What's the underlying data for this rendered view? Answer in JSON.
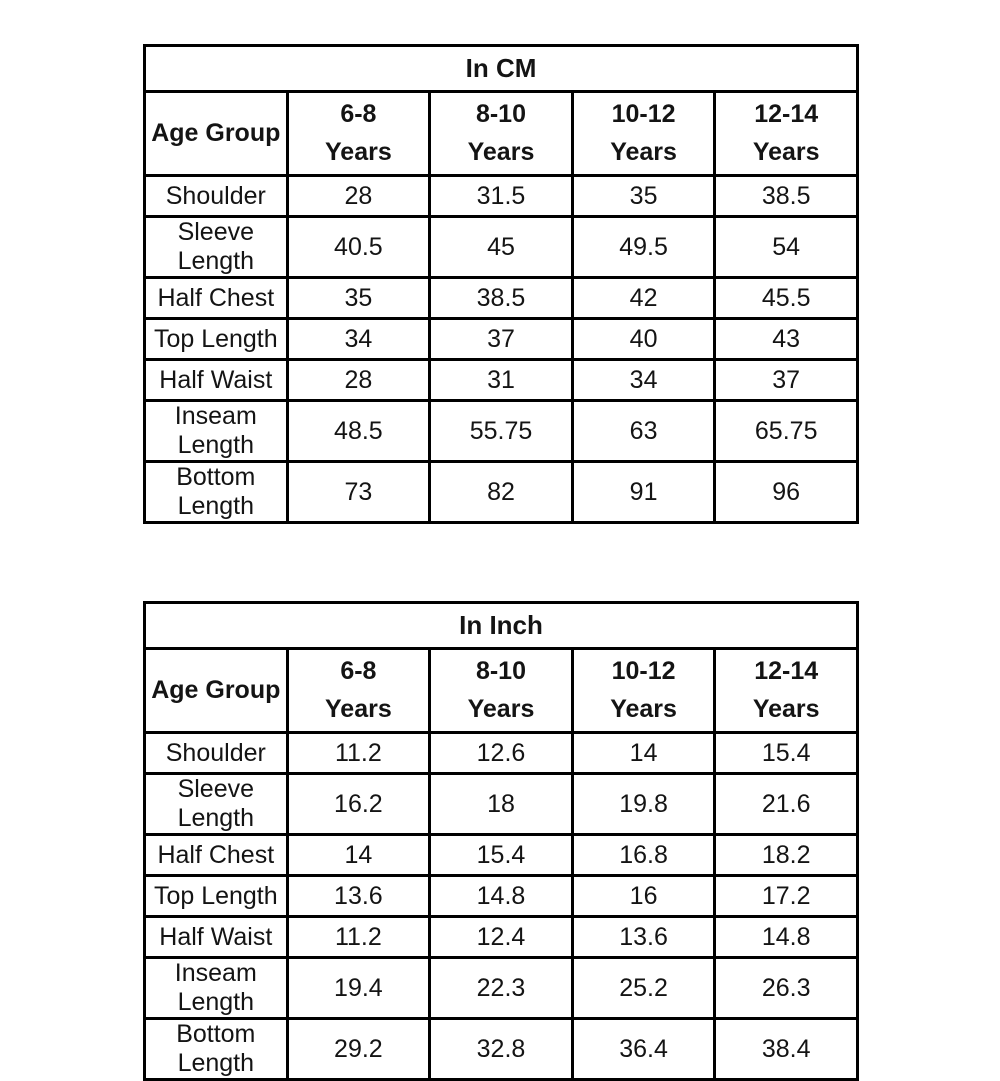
{
  "page": {
    "background": "#ffffff",
    "text_color": "#141414",
    "border_color": "#000000"
  },
  "chart_data": [
    {
      "type": "table",
      "title": "In CM",
      "columns": [
        "Age Group",
        "6-8\nYears",
        "8-10\nYears",
        "10-12\nYears",
        "12-14\nYears"
      ],
      "rows": [
        [
          "Shoulder",
          "28",
          "31.5",
          "35",
          "38.5"
        ],
        [
          "Sleeve Length",
          "40.5",
          "45",
          "49.5",
          "54"
        ],
        [
          "Half Chest",
          "35",
          "38.5",
          "42",
          "45.5"
        ],
        [
          "Top Length",
          "34",
          "37",
          "40",
          "43"
        ],
        [
          "Half Waist",
          "28",
          "31",
          "34",
          "37"
        ],
        [
          "Inseam Length",
          "48.5",
          "55.75",
          "63",
          "65.75"
        ],
        [
          "Bottom Length",
          "73",
          "82",
          "91",
          "96"
        ]
      ]
    },
    {
      "type": "table",
      "title": "In Inch",
      "columns": [
        "Age Group",
        "6-8\nYears",
        "8-10\nYears",
        "10-12\nYears",
        "12-14\nYears"
      ],
      "rows": [
        [
          "Shoulder",
          "11.2",
          "12.6",
          "14",
          "15.4"
        ],
        [
          "Sleeve Length",
          "16.2",
          "18",
          "19.8",
          "21.6"
        ],
        [
          "Half Chest",
          "14",
          "15.4",
          "16.8",
          "18.2"
        ],
        [
          "Top Length",
          "13.6",
          "14.8",
          "16",
          "17.2"
        ],
        [
          "Half Waist",
          "11.2",
          "12.4",
          "13.6",
          "14.8"
        ],
        [
          "Inseam Length",
          "19.4",
          "22.3",
          "25.2",
          "26.3"
        ],
        [
          "Bottom Length",
          "29.2",
          "32.8",
          "36.4",
          "38.4"
        ]
      ]
    }
  ]
}
